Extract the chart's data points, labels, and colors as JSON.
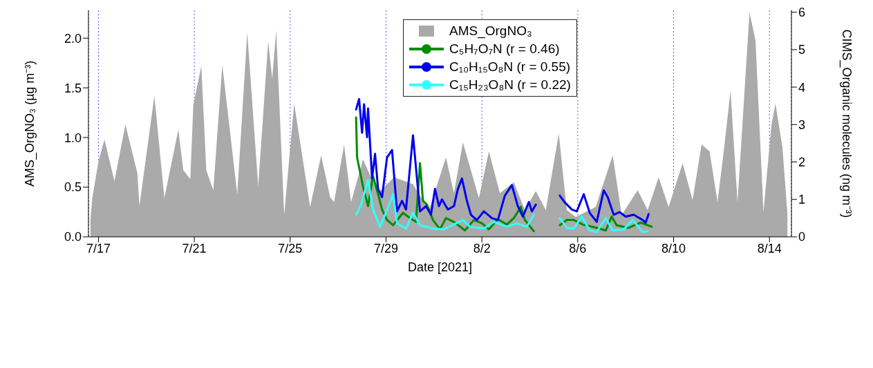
{
  "chart_data": {
    "type": "line",
    "xlabel": "Date [2021]",
    "ylabel": "AMS_OrgNO₃ (µg m⁻³)",
    "y2label": "CIMS_Organic molecules (ng m⁻³)",
    "xlim": [
      "2021-07-16T14:00",
      "2021-08-14T22:00"
    ],
    "xticks": [
      {
        "value": "2021-07-17",
        "label": "7/17"
      },
      {
        "value": "2021-07-21",
        "label": "7/21"
      },
      {
        "value": "2021-07-25",
        "label": "7/25"
      },
      {
        "value": "2021-07-29",
        "label": "7/29"
      },
      {
        "value": "2021-08-02",
        "label": "8/2"
      },
      {
        "value": "2021-08-06",
        "label": "8/6"
      },
      {
        "value": "2021-08-10",
        "label": "8/10"
      },
      {
        "value": "2021-08-14",
        "label": "8/14"
      }
    ],
    "ylim": [
      0,
      2.28
    ],
    "yticks": [
      {
        "value": 0,
        "label": "0.0"
      },
      {
        "value": 0.5,
        "label": "0.5"
      },
      {
        "value": 1,
        "label": "1.0"
      },
      {
        "value": 1.5,
        "label": "1.5"
      },
      {
        "value": 2,
        "label": "2.0"
      }
    ],
    "y2lim": [
      0,
      6.05
    ],
    "y2ticks": [
      0,
      1,
      2,
      3,
      4,
      5,
      6
    ],
    "grid": "x",
    "legend": "top",
    "marker": "none",
    "series": [
      {
        "name": "AMS_OrgNO₃",
        "type": "area",
        "color": "#aaaaaa",
        "x": [
          "2021-07-16T16:00",
          "2021-07-16T18:00",
          "2021-07-17T00:00",
          "2021-07-17T06:00",
          "2021-07-17T16:00",
          "2021-07-18T03:00",
          "2021-07-18T15:00",
          "2021-07-18T17:00",
          "2021-07-19T08:00",
          "2021-07-19T18:00",
          "2021-07-20T08:00",
          "2021-07-20T13:00",
          "2021-07-20T20:00",
          "2021-07-20T23:00",
          "2021-07-21T07:00",
          "2021-07-21T12:00",
          "2021-07-21T19:00",
          "2021-07-22T04:00",
          "2021-07-22T19:00",
          "2021-07-23T05:00",
          "2021-07-23T16:00",
          "2021-07-24T02:00",
          "2021-07-24T06:00",
          "2021-07-24T10:00",
          "2021-07-24T18:00",
          "2021-07-25T04:00",
          "2021-07-25T20:00",
          "2021-07-26T07:00",
          "2021-07-26T16:00",
          "2021-07-26T20:00",
          "2021-07-27T06:00",
          "2021-07-27T13:00",
          "2021-07-28T01:00",
          "2021-07-28T16:00",
          "2021-07-29T08:00",
          "2021-07-30T03:00",
          "2021-07-30T19:00",
          "2021-07-31T12:00",
          "2021-07-31T20:00",
          "2021-08-01T05:00",
          "2021-08-01T21:00",
          "2021-08-02T07:00",
          "2021-08-02T18:00",
          "2021-08-03T08:00",
          "2021-08-03T19:00",
          "2021-08-04T06:00",
          "2021-08-04T16:00",
          "2021-08-05T05:00",
          "2021-08-05T13:00",
          "2021-08-05T22:00",
          "2021-08-06T18:00",
          "2021-08-07T11:00",
          "2021-08-07T20:00",
          "2021-08-08T12:00",
          "2021-08-08T22:00",
          "2021-08-09T09:00",
          "2021-08-09T19:00",
          "2021-08-10T09:00",
          "2021-08-10T19:00",
          "2021-08-11T04:00",
          "2021-08-11T12:00",
          "2021-08-11T20:00",
          "2021-08-12T03:00",
          "2021-08-12T09:00",
          "2021-08-12T16:00",
          "2021-08-13T04:00",
          "2021-08-13T10:00",
          "2021-08-13T18:00",
          "2021-08-14T02:00",
          "2021-08-14T06:00",
          "2021-08-14T13:00",
          "2021-08-14T18:00"
        ],
        "values": [
          0.18,
          0.4,
          0.76,
          0.98,
          0.56,
          1.13,
          0.64,
          0.31,
          1.42,
          0.39,
          1.08,
          0.67,
          0.58,
          1.33,
          1.72,
          0.67,
          0.47,
          1.73,
          0.43,
          2.06,
          0.51,
          1.97,
          1.59,
          2.08,
          0.22,
          1.34,
          0.3,
          0.82,
          0.4,
          0.35,
          0.93,
          0.35,
          0.78,
          0.44,
          0.6,
          0.53,
          0.27,
          0.8,
          0.44,
          0.95,
          0.39,
          0.86,
          0.44,
          0.55,
          0.27,
          0.46,
          0.27,
          1.04,
          0.27,
          0.2,
          0.3,
          0.82,
          0.22,
          0.47,
          0.27,
          0.6,
          0.3,
          0.74,
          0.37,
          0.93,
          0.86,
          0.35,
          0.93,
          1.47,
          0.35,
          2.26,
          1.98,
          0.25,
          1.13,
          1.34,
          0.9,
          0.23
        ]
      },
      {
        "name": "C₅H₇O₇N (r = 0.46)",
        "axis": "y2",
        "color": "#008c00",
        "x": [
          "2021-07-27T18:00",
          "2021-07-27T19:00",
          "2021-07-28T01:00",
          "2021-07-28T06:00",
          "2021-07-28T11:00",
          "2021-07-28T16:00",
          "2021-07-28T20:00",
          "2021-07-29T01:00",
          "2021-07-29T07:00",
          "2021-07-29T17:00",
          "2021-07-30T00:00",
          "2021-07-30T06:00",
          "2021-07-30T10:00",
          "2021-07-30T13:00",
          "2021-07-30T17:00",
          "2021-07-30T23:00",
          "2021-07-31T06:00",
          "2021-07-31T12:00",
          "2021-07-31T20:00",
          "2021-08-01T07:00",
          "2021-08-01T16:00",
          "2021-08-02T00:00",
          "2021-08-02T07:00",
          "2021-08-02T16:00",
          "2021-08-03T01:00",
          "2021-08-03T08:00",
          "2021-08-03T15:00",
          "2021-08-03T19:00",
          "2021-08-04T04:00",
          "2021-08-04T18:00",
          "2021-08-05T06:00",
          "2021-08-05T13:00",
          "2021-08-05T20:00",
          "2021-08-06T05:00",
          "2021-08-06T19:00",
          "2021-08-07T04:00",
          "2021-08-07T10:00",
          "2021-08-07T15:00",
          "2021-08-08T03:00",
          "2021-08-08T15:00",
          "2021-08-09T02:00"
        ],
        "values": [
          3.19,
          2.12,
          1.34,
          0.82,
          1.62,
          1.14,
          0.73,
          0.45,
          0.31,
          0.64,
          0.5,
          0.4,
          1.97,
          0.96,
          0.86,
          0.45,
          0.2,
          0.5,
          0.4,
          0.17,
          0.45,
          0.36,
          0.2,
          0.47,
          0.33,
          0.5,
          0.8,
          0.45,
          0.15,
          null,
          0.31,
          0.45,
          0.45,
          0.33,
          0.24,
          0.17,
          0.54,
          0.31,
          0.24,
          0.38,
          0.27
        ]
      },
      {
        "name": "C₁₀H₁₅O₈N (r = 0.55)",
        "axis": "y2",
        "color": "#0000ee",
        "x": [
          "2021-07-27T18:00",
          "2021-07-27T21:00",
          "2021-07-28T00:00",
          "2021-07-28T02:00",
          "2021-07-28T05:00",
          "2021-07-28T06:00",
          "2021-07-28T10:00",
          "2021-07-28T13:00",
          "2021-07-28T16:00",
          "2021-07-28T20:00",
          "2021-07-29T01:00",
          "2021-07-29T06:00",
          "2021-07-29T11:00",
          "2021-07-29T16:00",
          "2021-07-29T20:00",
          "2021-07-30T03:00",
          "2021-07-30T06:00",
          "2021-07-30T10:00",
          "2021-07-30T16:00",
          "2021-07-30T21:00",
          "2021-07-31T01:00",
          "2021-07-31T05:00",
          "2021-07-31T08:00",
          "2021-07-31T14:00",
          "2021-07-31T20:00",
          "2021-08-01T00:00",
          "2021-08-01T04:00",
          "2021-08-01T09:00",
          "2021-08-01T13:00",
          "2021-08-01T19:00",
          "2021-08-02T02:00",
          "2021-08-02T10:00",
          "2021-08-02T16:00",
          "2021-08-02T23:00",
          "2021-08-03T06:00",
          "2021-08-03T12:00",
          "2021-08-03T17:00",
          "2021-08-03T23:00",
          "2021-08-04T02:00",
          "2021-08-04T06:00",
          "2021-08-04T18:00",
          "2021-08-05T06:00",
          "2021-08-05T11:00",
          "2021-08-05T18:00",
          "2021-08-05T23:00",
          "2021-08-06T06:00",
          "2021-08-06T12:00",
          "2021-08-06T19:00",
          "2021-08-07T02:00",
          "2021-08-07T06:00",
          "2021-08-07T12:00",
          "2021-08-07T18:00",
          "2021-08-08T00:00",
          "2021-08-08T08:00",
          "2021-08-08T17:00",
          "2021-08-08T20:00",
          "2021-08-08T23:00"
        ],
        "values": [
          3.4,
          3.68,
          2.78,
          3.54,
          2.66,
          3.43,
          1.56,
          2.22,
          1.28,
          1.06,
          2.12,
          2.32,
          0.68,
          0.96,
          0.73,
          2.71,
          1.84,
          0.68,
          0.82,
          0.59,
          1.28,
          0.82,
          1.0,
          0.73,
          0.82,
          1.28,
          1.56,
          0.96,
          0.59,
          0.45,
          0.68,
          0.5,
          0.45,
          1.1,
          1.38,
          0.82,
          0.54,
          0.93,
          0.68,
          0.86,
          null,
          1.1,
          0.92,
          0.73,
          0.68,
          1.14,
          0.64,
          0.4,
          1.24,
          1.06,
          0.59,
          0.66,
          0.54,
          0.59,
          0.45,
          0.38,
          0.61
        ]
      },
      {
        "name": "C₁₅H₂₃O₈N (r = 0.22)",
        "axis": "y2",
        "color": "#33ffff",
        "x": [
          "2021-07-27T18:00",
          "2021-07-27T23:00",
          "2021-07-28T06:00",
          "2021-07-28T11:00",
          "2021-07-28T18:00",
          "2021-07-29T02:00",
          "2021-07-29T07:00",
          "2021-07-29T11:00",
          "2021-07-29T20:00",
          "2021-07-30T03:00",
          "2021-07-30T10:00",
          "2021-07-30T23:00",
          "2021-07-31T10:00",
          "2021-08-01T05:00",
          "2021-08-01T12:00",
          "2021-08-02T02:00",
          "2021-08-02T12:00",
          "2021-08-03T01:00",
          "2021-08-03T11:00",
          "2021-08-03T21:00",
          "2021-08-04T04:00",
          "2021-08-04T18:00",
          "2021-08-05T06:00",
          "2021-08-05T13:00",
          "2021-08-05T20:00",
          "2021-08-06T04:00",
          "2021-08-06T12:00",
          "2021-08-06T19:00",
          "2021-08-07T04:00",
          "2021-08-07T11:00",
          "2021-08-07T22:00",
          "2021-08-08T07:00",
          "2021-08-08T17:00",
          "2021-08-08T22:00"
        ],
        "values": [
          0.59,
          0.86,
          1.52,
          0.73,
          0.27,
          0.78,
          1.14,
          0.36,
          0.22,
          0.64,
          0.31,
          0.22,
          0.2,
          0.45,
          0.27,
          0.22,
          0.4,
          0.27,
          0.36,
          0.27,
          0.59,
          null,
          0.5,
          0.24,
          0.22,
          0.54,
          0.17,
          0.13,
          0.5,
          0.17,
          0.2,
          0.45,
          0.13,
          0.15
        ]
      }
    ]
  }
}
